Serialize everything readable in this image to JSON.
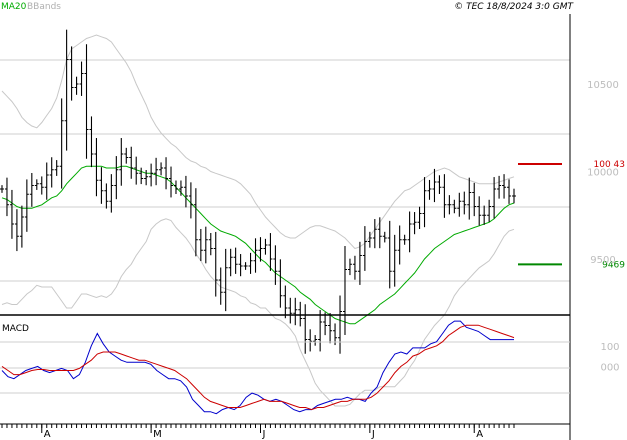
{
  "chart_data": [
    {
      "type": "ohlc",
      "title": "",
      "legend": [
        {
          "name": "MA20",
          "color": "#00aa00"
        },
        {
          "name": "BBands",
          "color": "#b0b0b0"
        }
      ],
      "copyright": "© TEC 18/8/2024 3:0 GMT",
      "y_ticks": [
        "10500",
        "10000",
        "9500"
      ],
      "y_tick_values": [
        10500,
        10000,
        9500
      ],
      "ylim": [
        9180,
        10900
      ],
      "x_month_labels": [
        "A",
        "M",
        "J",
        "J",
        "A"
      ],
      "x_month_positions": [
        8,
        30,
        52,
        74,
        95
      ],
      "n_bars": 104,
      "levels": [
        {
          "label": "100 43",
          "value": 10043,
          "color": "#cc0000"
        },
        {
          "label": "9469",
          "value": 9469,
          "color": "#008800"
        }
      ],
      "close": [
        9900,
        9810,
        9700,
        9630,
        9740,
        9870,
        9920,
        9930,
        9910,
        9980,
        10010,
        10030,
        10290,
        10640,
        10480,
        10500,
        10560,
        10240,
        10100,
        9950,
        9890,
        9830,
        9920,
        10010,
        10100,
        10080,
        10020,
        9990,
        9960,
        9970,
        9990,
        10010,
        10020,
        9960,
        9920,
        9900,
        9910,
        9860,
        9810,
        9610,
        9550,
        9610,
        9560,
        9380,
        9310,
        9450,
        9510,
        9470,
        9460,
        9460,
        9490,
        9550,
        9560,
        9580,
        9500,
        9430,
        9290,
        9220,
        9190,
        9210,
        9160,
        9040,
        9030,
        9040,
        9140,
        9120,
        9090,
        9050,
        9200,
        9440,
        9470,
        9430,
        9520,
        9600,
        9620,
        9670,
        9630,
        9620,
        9430,
        9550,
        9610,
        9610,
        9700,
        9710,
        9760,
        9890,
        9900,
        9940,
        9910,
        9810,
        9810,
        9790,
        9830,
        9810,
        9880,
        9800,
        9750,
        9750,
        9800,
        9900,
        9920,
        9910,
        9860,
        9860
      ],
      "ma20": [
        9850,
        9840,
        9820,
        9800,
        9790,
        9790,
        9790,
        9800,
        9810,
        9830,
        9850,
        9860,
        9890,
        9930,
        9960,
        9990,
        10020,
        10030,
        10030,
        10030,
        10030,
        10020,
        10020,
        10020,
        10030,
        10030,
        10020,
        10010,
        10000,
        9990,
        9990,
        9980,
        9970,
        9960,
        9940,
        9910,
        9880,
        9850,
        9820,
        9790,
        9760,
        9730,
        9700,
        9680,
        9660,
        9650,
        9640,
        9630,
        9610,
        9590,
        9560,
        9530,
        9500,
        9480,
        9450,
        9420,
        9400,
        9380,
        9360,
        9340,
        9310,
        9290,
        9270,
        9240,
        9220,
        9200,
        9180,
        9160,
        9150,
        9140,
        9130,
        9130,
        9150,
        9170,
        9190,
        9210,
        9240,
        9260,
        9280,
        9300,
        9330,
        9360,
        9390,
        9420,
        9460,
        9500,
        9530,
        9560,
        9580,
        9600,
        9620,
        9640,
        9650,
        9660,
        9670,
        9680,
        9690,
        9700,
        9710,
        9730,
        9760,
        9790,
        9810,
        9820
      ],
      "bb_upper": [
        10460,
        10430,
        10400,
        10360,
        10310,
        10280,
        10260,
        10250,
        10280,
        10320,
        10360,
        10420,
        10520,
        10640,
        10700,
        10720,
        10740,
        10760,
        10770,
        10780,
        10770,
        10760,
        10740,
        10700,
        10660,
        10620,
        10570,
        10500,
        10440,
        10380,
        10310,
        10260,
        10220,
        10190,
        10160,
        10140,
        10110,
        10080,
        10060,
        10050,
        10030,
        10020,
        10000,
        9990,
        9980,
        9970,
        9960,
        9950,
        9930,
        9900,
        9870,
        9820,
        9780,
        9740,
        9710,
        9680,
        9650,
        9630,
        9620,
        9620,
        9640,
        9660,
        9680,
        9690,
        9690,
        9680,
        9670,
        9660,
        9640,
        9620,
        9590,
        9560,
        9570,
        9590,
        9630,
        9670,
        9710,
        9750,
        9790,
        9830,
        9860,
        9890,
        9900,
        9920,
        9940,
        9960,
        9980,
        10000,
        10010,
        10020,
        10010,
        9990,
        9970,
        9960,
        9950,
        9940,
        9930,
        9930,
        9930,
        9930,
        9940,
        9950,
        9960,
        9970
      ],
      "bb_lower": [
        9240,
        9250,
        9240,
        9240,
        9270,
        9300,
        9320,
        9350,
        9340,
        9340,
        9340,
        9300,
        9260,
        9220,
        9220,
        9260,
        9300,
        9300,
        9290,
        9280,
        9290,
        9280,
        9300,
        9340,
        9400,
        9440,
        9470,
        9520,
        9560,
        9600,
        9670,
        9700,
        9720,
        9730,
        9720,
        9680,
        9650,
        9620,
        9580,
        9530,
        9490,
        9440,
        9400,
        9370,
        9340,
        9330,
        9320,
        9310,
        9290,
        9280,
        9250,
        9240,
        9220,
        9220,
        9190,
        9160,
        9150,
        9130,
        9100,
        9060,
        8980,
        8920,
        8860,
        8790,
        8750,
        8720,
        8690,
        8660,
        8660,
        8660,
        8670,
        8700,
        8730,
        8750,
        8750,
        8750,
        8770,
        8770,
        8770,
        8770,
        8800,
        8830,
        8880,
        8920,
        8980,
        9040,
        9080,
        9120,
        9150,
        9180,
        9230,
        9290,
        9330,
        9360,
        9390,
        9420,
        9450,
        9470,
        9490,
        9530,
        9580,
        9630,
        9660,
        9670
      ]
    },
    {
      "type": "line",
      "title": "MACD",
      "y_ticks": [
        "100",
        "000"
      ],
      "y_tick_values": [
        100,
        0
      ],
      "ylim": [
        -280,
        240
      ],
      "x_month_labels": [
        "A",
        "M",
        "J",
        "J",
        "A"
      ],
      "series": [
        {
          "name": "MACD",
          "color": "#0000cc",
          "values": [
            -20,
            -50,
            -60,
            -40,
            -20,
            -10,
            0,
            -20,
            -30,
            -20,
            -10,
            -20,
            -60,
            -40,
            20,
            100,
            160,
            110,
            70,
            50,
            30,
            20,
            20,
            20,
            20,
            10,
            -20,
            -40,
            -60,
            -60,
            -70,
            -100,
            -160,
            -190,
            -220,
            -220,
            -230,
            -210,
            -200,
            -210,
            -190,
            -150,
            -130,
            -140,
            -160,
            -170,
            -160,
            -170,
            -190,
            -210,
            -220,
            -210,
            -210,
            -190,
            -180,
            -170,
            -160,
            -160,
            -150,
            -160,
            -160,
            -170,
            -130,
            -100,
            -30,
            20,
            60,
            70,
            60,
            90,
            90,
            90,
            110,
            120,
            160,
            200,
            220,
            220,
            190,
            180,
            170,
            150,
            130,
            130,
            130,
            130,
            130
          ]
        },
        {
          "name": "Signal",
          "color": "#cc0000",
          "values": [
            0,
            -20,
            -40,
            -40,
            -30,
            -20,
            -15,
            -15,
            -20,
            -20,
            -20,
            -20,
            -20,
            -10,
            10,
            30,
            60,
            70,
            70,
            70,
            60,
            50,
            40,
            30,
            30,
            20,
            10,
            0,
            -10,
            -20,
            -40,
            -60,
            -90,
            -120,
            -150,
            -170,
            -180,
            -190,
            -200,
            -200,
            -200,
            -190,
            -180,
            -170,
            -160,
            -170,
            -170,
            -170,
            -180,
            -190,
            -200,
            -200,
            -210,
            -200,
            -200,
            -190,
            -180,
            -170,
            -170,
            -160,
            -160,
            -160,
            -150,
            -130,
            -100,
            -70,
            -30,
            0,
            20,
            50,
            60,
            80,
            90,
            100,
            120,
            150,
            170,
            190,
            200,
            200,
            200,
            190,
            180,
            170,
            160,
            150,
            140
          ]
        }
      ]
    }
  ]
}
